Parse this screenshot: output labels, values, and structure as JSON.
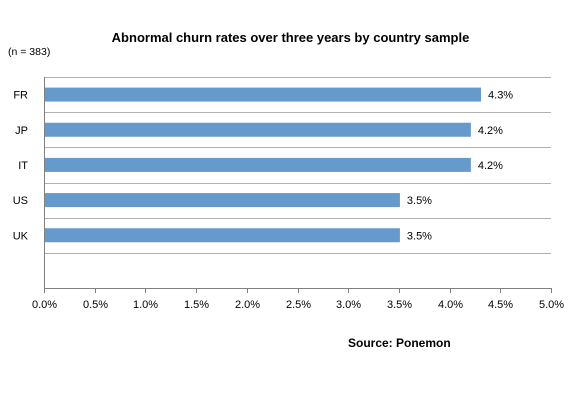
{
  "chart_data": {
    "type": "bar",
    "orientation": "horizontal",
    "title": "Abnormal churn rates over three years by country sample",
    "note": "(n = 383)",
    "categories": [
      "FR",
      "JP",
      "IT",
      "US",
      "UK"
    ],
    "values": [
      4.3,
      4.2,
      4.2,
      3.5,
      3.5
    ],
    "value_labels": [
      "4.3%",
      "4.2%",
      "4.2%",
      "3.5%",
      "3.5%"
    ],
    "xlim": [
      0,
      5.0
    ],
    "x_ticks": [
      0,
      0.5,
      1.0,
      1.5,
      2.0,
      2.5,
      3.0,
      3.5,
      4.0,
      4.5,
      5.0
    ],
    "x_tick_labels": [
      "0.0%",
      "0.5%",
      "1.0%",
      "1.5%",
      "2.0%",
      "2.5%",
      "3.0%",
      "3.5%",
      "4.0%",
      "4.5%",
      "5.0%"
    ],
    "grid": true,
    "bar_color": "#6699cc"
  },
  "source": "Source: Ponemon"
}
